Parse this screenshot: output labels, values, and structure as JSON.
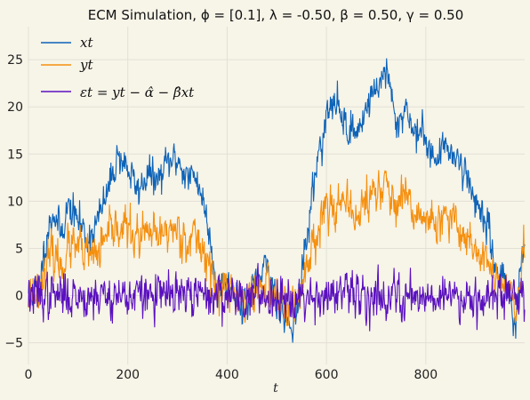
{
  "chart_data": {
    "type": "line",
    "title": "ECM Simulation, ϕ = [0.1], λ = -0.50, β = 0.50, γ = 0.50",
    "xlabel": "t",
    "ylabel": "",
    "xlim": [
      0,
      999
    ],
    "ylim": [
      -7.3,
      28.5
    ],
    "x_ticks": [
      0,
      200,
      400,
      600,
      800
    ],
    "y_ticks": [
      -5,
      0,
      5,
      10,
      15,
      20,
      25
    ],
    "x_tick_labels": [
      "0",
      "200",
      "400",
      "600",
      "800"
    ],
    "y_tick_labels": [
      "−5",
      "0",
      "5",
      "10",
      "15",
      "20",
      "25"
    ],
    "grid": true,
    "legend_position": "top-left",
    "n_points": 1000,
    "series": [
      {
        "name": "x_t",
        "label": "xt",
        "color": "#0d63b8",
        "knots_t": [
          0,
          20,
          35,
          50,
          65,
          80,
          100,
          120,
          140,
          160,
          180,
          200,
          220,
          240,
          260,
          280,
          300,
          320,
          340,
          360,
          380,
          400,
          420,
          440,
          460,
          480,
          500,
          520,
          540,
          560,
          580,
          600,
          620,
          640,
          660,
          680,
          700,
          720,
          740,
          760,
          780,
          800,
          820,
          840,
          860,
          880,
          900,
          920,
          940,
          960,
          980,
          999
        ],
        "knots_v": [
          0.5,
          0.5,
          6,
          9,
          6.5,
          9.5,
          8,
          6,
          8,
          11,
          15,
          13.5,
          11,
          13,
          12,
          14,
          14.5,
          12.5,
          12.5,
          8,
          1,
          1.5,
          0,
          -1,
          1,
          3,
          0,
          -3,
          -2,
          6,
          14,
          19,
          20.5,
          18,
          17,
          20,
          22,
          24,
          18,
          20,
          17,
          17,
          14,
          16,
          15,
          13,
          10,
          8,
          3,
          2,
          -3,
          6
        ],
        "noise": 0.9,
        "seed": 11
      },
      {
        "name": "y_t",
        "label": "yt",
        "color": "#f5900f",
        "knots_t": [
          0,
          20,
          35,
          50,
          65,
          80,
          100,
          120,
          140,
          160,
          180,
          200,
          220,
          240,
          260,
          280,
          300,
          320,
          340,
          360,
          380,
          400,
          420,
          440,
          460,
          480,
          500,
          520,
          540,
          560,
          580,
          600,
          620,
          640,
          660,
          680,
          700,
          720,
          740,
          760,
          780,
          800,
          820,
          840,
          860,
          880,
          900,
          920,
          940,
          960,
          980,
          999
        ],
        "knots_v": [
          0.3,
          0.5,
          3,
          4.5,
          3,
          5,
          5,
          4,
          4.5,
          6,
          7.5,
          7,
          6,
          6.5,
          6,
          7,
          7,
          6,
          6,
          4,
          0.5,
          1,
          0,
          -0.5,
          0.5,
          1.5,
          0,
          -1.5,
          -1,
          3,
          7,
          9.5,
          10,
          9,
          8.5,
          10,
          11,
          12,
          9,
          10,
          8.5,
          8.5,
          7,
          8,
          7.5,
          6.5,
          5,
          4,
          1.5,
          1,
          -1.5,
          4
        ],
        "noise": 1.1,
        "seed": 23
      },
      {
        "name": "epsilon_t",
        "label": "εt = yt − α̂ − β̂xt",
        "color": "#5a10bf",
        "knots_t": [
          0,
          999
        ],
        "knots_v": [
          0,
          0
        ],
        "noise": 1.1,
        "seed": 37
      }
    ]
  }
}
